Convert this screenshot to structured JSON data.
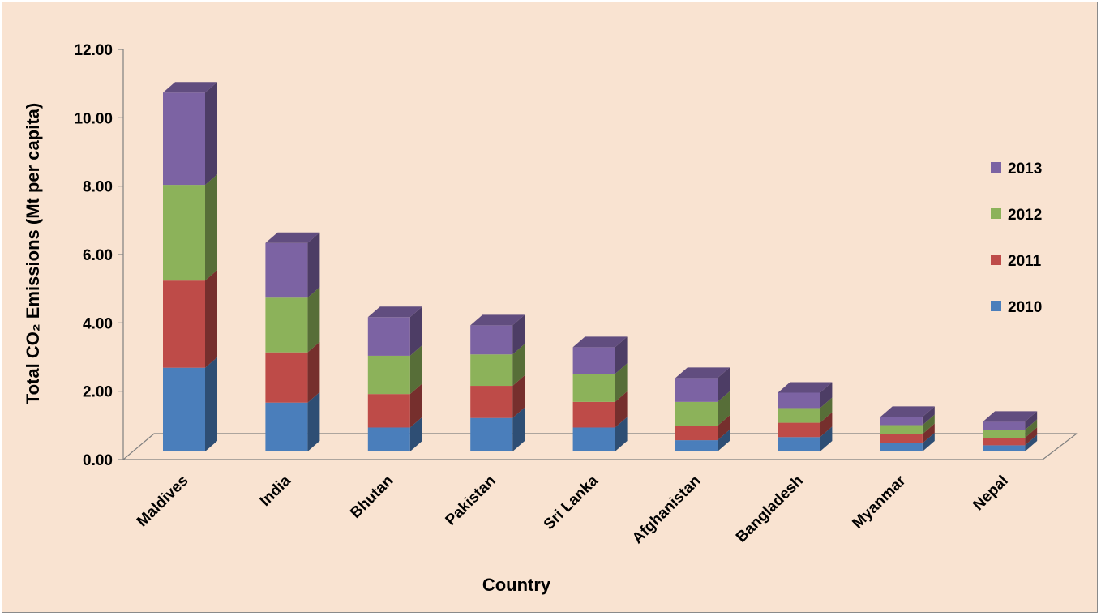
{
  "chart_data": {
    "type": "bar",
    "stacked": true,
    "three_d": true,
    "categories": [
      "Maldives",
      "India",
      "Bhutan",
      "Pakistan",
      "Sri Lanka",
      "Afghanistan",
      "Bangladesh",
      "Myanmar",
      "Nepal"
    ],
    "series": [
      {
        "name": "2010",
        "color": "#4a7ebb",
        "values": [
          2.45,
          1.43,
          0.7,
          0.98,
          0.7,
          0.33,
          0.42,
          0.24,
          0.18
        ]
      },
      {
        "name": "2011",
        "color": "#be4b48",
        "values": [
          2.55,
          1.47,
          0.98,
          0.94,
          0.75,
          0.42,
          0.42,
          0.27,
          0.22
        ]
      },
      {
        "name": "2012",
        "color": "#8cb25a",
        "values": [
          2.8,
          1.6,
          1.12,
          0.92,
          0.82,
          0.7,
          0.43,
          0.26,
          0.23
        ]
      },
      {
        "name": "2013",
        "color": "#7c63a3",
        "values": [
          2.7,
          1.6,
          1.13,
          0.85,
          0.78,
          0.7,
          0.45,
          0.24,
          0.24
        ]
      }
    ],
    "xlabel": "Country",
    "ylabel": "Total CO₂ Emissions (Mt per capita)",
    "ylim": [
      0,
      12
    ],
    "y_ticks": [
      "0.00",
      "2.00",
      "4.00",
      "6.00",
      "8.00",
      "10.00",
      "12.00"
    ],
    "legend_position": "right",
    "grid": false,
    "background_color": "#f9e3d1"
  }
}
